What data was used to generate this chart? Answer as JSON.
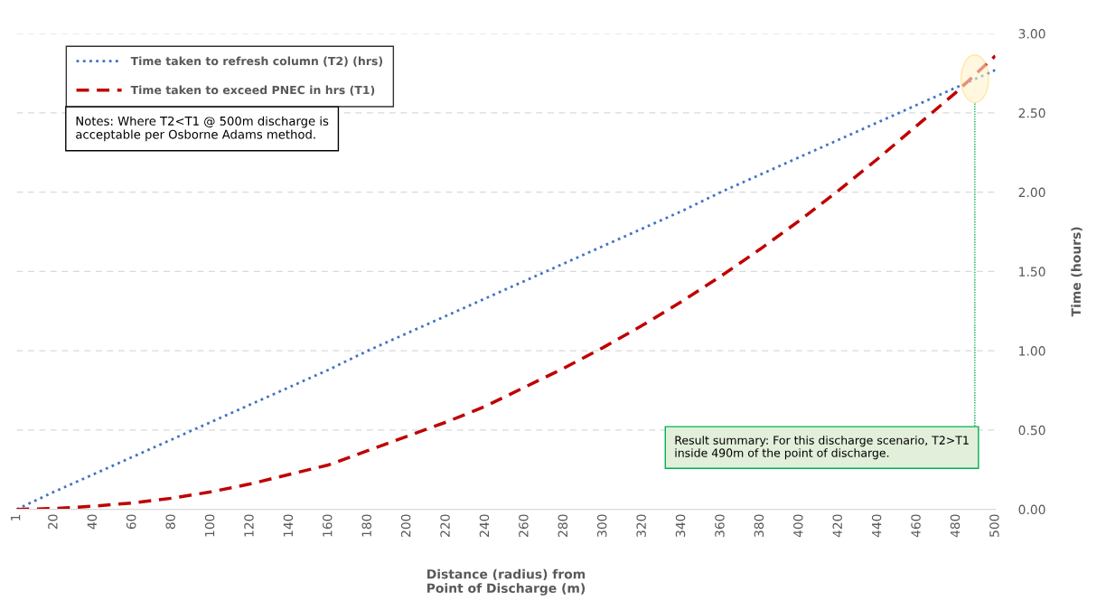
{
  "chart_data": {
    "type": "line",
    "xlabel": "Distance (radius) from\nPoint of Discharge (m)",
    "ylabel": "Time (hours)",
    "x": [
      1,
      20,
      40,
      60,
      80,
      100,
      120,
      140,
      160,
      180,
      200,
      220,
      240,
      260,
      280,
      300,
      320,
      340,
      360,
      380,
      400,
      420,
      440,
      460,
      480,
      500
    ],
    "series": [
      {
        "name": "Time taken to refresh column (T2) (hrs)",
        "color": "#4472c4",
        "line_style": "dotted",
        "values": [
          0,
          0.11,
          0.22,
          0.33,
          0.44,
          0.55,
          0.66,
          0.77,
          0.88,
          1.0,
          1.11,
          1.22,
          1.33,
          1.44,
          1.55,
          1.66,
          1.77,
          1.88,
          2.0,
          2.11,
          2.22,
          2.33,
          2.44,
          2.55,
          2.66,
          2.77
        ]
      },
      {
        "name": "Time taken to exceed PNEC in hrs (T1)",
        "color": "#c00000",
        "line_style": "dashed",
        "values": [
          0,
          0.005,
          0.02,
          0.04,
          0.07,
          0.11,
          0.16,
          0.22,
          0.28,
          0.37,
          0.46,
          0.55,
          0.65,
          0.77,
          0.89,
          1.02,
          1.16,
          1.31,
          1.47,
          1.64,
          1.82,
          2.01,
          2.21,
          2.42,
          2.63,
          2.86
        ]
      }
    ],
    "xlim": [
      1,
      500
    ],
    "xticks": [
      1,
      20,
      40,
      60,
      80,
      100,
      120,
      140,
      160,
      180,
      200,
      220,
      240,
      260,
      280,
      300,
      320,
      340,
      360,
      380,
      400,
      420,
      440,
      460,
      480,
      500
    ],
    "ylim": [
      0,
      3
    ],
    "yticks": [
      {
        "value": 0,
        "label": "0.00"
      },
      {
        "value": 0.5,
        "label": "0.50"
      },
      {
        "value": 1,
        "label": "1.00"
      },
      {
        "value": 1.5,
        "label": "1.50"
      },
      {
        "value": 2,
        "label": "2.00"
      },
      {
        "value": 2.5,
        "label": "2.50"
      },
      {
        "value": 3,
        "label": "3.00"
      }
    ],
    "grid": "y",
    "legend": "top left",
    "annotations": [
      "Notes: Where T2<T1 @ 500m discharge is\nacceptable per Osborne Adams method.",
      "Result summary: For this discharge scenario, T2>T1\ninside 490m of the point of discharge."
    ]
  }
}
